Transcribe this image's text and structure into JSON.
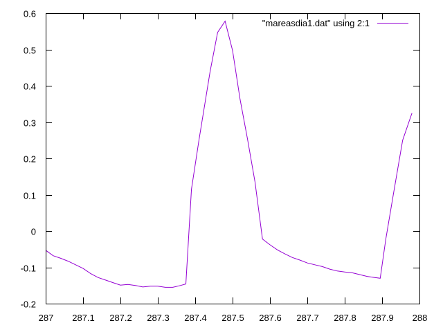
{
  "chart_data": {
    "type": "line",
    "title": "",
    "xlabel": "",
    "ylabel": "",
    "xlim": [
      287,
      288
    ],
    "ylim": [
      -0.2,
      0.6
    ],
    "x_ticks": [
      "287",
      "287.1",
      "287.2",
      "287.3",
      "287.4",
      "287.5",
      "287.6",
      "287.7",
      "287.8",
      "287.9",
      "288"
    ],
    "y_ticks": [
      "-0.2",
      "-0.1",
      "0",
      "0.1",
      "0.2",
      "0.3",
      "0.4",
      "0.5",
      "0.6"
    ],
    "grid": false,
    "legend": {
      "position": "top-right"
    },
    "series": [
      {
        "name": "\"mareasdia1.dat\" using 2:1",
        "color": "#9400d3",
        "points": [
          [
            287.0,
            -0.053
          ],
          [
            287.02,
            -0.068
          ],
          [
            287.04,
            -0.075
          ],
          [
            287.06,
            -0.083
          ],
          [
            287.08,
            -0.093
          ],
          [
            287.1,
            -0.103
          ],
          [
            287.12,
            -0.117
          ],
          [
            287.14,
            -0.128
          ],
          [
            287.16,
            -0.135
          ],
          [
            287.18,
            -0.142
          ],
          [
            287.2,
            -0.149
          ],
          [
            287.22,
            -0.147
          ],
          [
            287.24,
            -0.15
          ],
          [
            287.26,
            -0.154
          ],
          [
            287.28,
            -0.152
          ],
          [
            287.3,
            -0.152
          ],
          [
            287.32,
            -0.155
          ],
          [
            287.34,
            -0.155
          ],
          [
            287.36,
            -0.15
          ],
          [
            287.375,
            -0.146
          ],
          [
            287.39,
            0.115
          ],
          [
            287.41,
            0.25
          ],
          [
            287.44,
            0.44
          ],
          [
            287.46,
            0.547
          ],
          [
            287.48,
            0.578
          ],
          [
            287.5,
            0.497
          ],
          [
            287.52,
            0.363
          ],
          [
            287.54,
            0.253
          ],
          [
            287.56,
            0.135
          ],
          [
            287.58,
            -0.022
          ],
          [
            287.6,
            -0.038
          ],
          [
            287.62,
            -0.052
          ],
          [
            287.64,
            -0.063
          ],
          [
            287.66,
            -0.073
          ],
          [
            287.68,
            -0.08
          ],
          [
            287.7,
            -0.088
          ],
          [
            287.72,
            -0.093
          ],
          [
            287.74,
            -0.098
          ],
          [
            287.76,
            -0.105
          ],
          [
            287.78,
            -0.11
          ],
          [
            287.8,
            -0.113
          ],
          [
            287.82,
            -0.115
          ],
          [
            287.84,
            -0.12
          ],
          [
            287.86,
            -0.125
          ],
          [
            287.88,
            -0.128
          ],
          [
            287.895,
            -0.13
          ],
          [
            287.91,
            -0.022
          ],
          [
            287.93,
            0.1
          ],
          [
            287.955,
            0.25
          ],
          [
            287.98,
            0.325
          ]
        ]
      }
    ]
  }
}
